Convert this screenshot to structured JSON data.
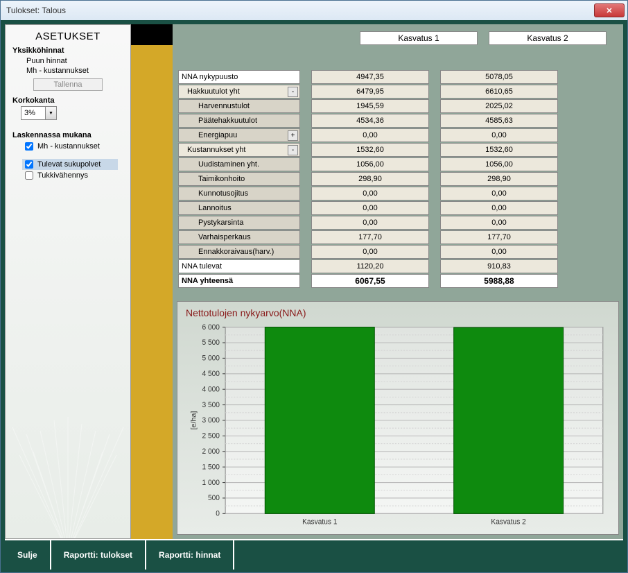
{
  "window": {
    "title": "Tulokset: Talous"
  },
  "sidebar": {
    "title": "ASETUKSET",
    "sec1": "Yksikköhinnat",
    "sec1_items": [
      "Puun hinnat",
      "Mh - kustannukset"
    ],
    "save_btn": "Tallenna",
    "sec2": "Korkokanta",
    "korko_value": "3%",
    "sec3": "Laskennassa mukana",
    "check1": "Mh - kustannukset",
    "check2": "Tulevat sukupolvet",
    "check3": "Tukkivähennys",
    "check1_on": true,
    "check2_on": true,
    "check3_on": false
  },
  "columns": {
    "c1": "Kasvatus 1",
    "c2": "Kasvatus 2"
  },
  "rows": [
    {
      "label": "NNA nykypuusto",
      "level": 0,
      "v1": "4947,35",
      "v2": "5078,05"
    },
    {
      "label": "Hakkuutulot yht",
      "level": 1,
      "toggle": "-",
      "v1": "6479,95",
      "v2": "6610,65"
    },
    {
      "label": "Harvennustulot",
      "level": 2,
      "v1": "1945,59",
      "v2": "2025,02"
    },
    {
      "label": "Päätehakkuutulot",
      "level": 2,
      "v1": "4534,36",
      "v2": "4585,63"
    },
    {
      "label": "Energiapuu",
      "level": 2,
      "toggle": "+",
      "v1": "0,00",
      "v2": "0,00"
    },
    {
      "label": "Kustannukset yht",
      "level": 1,
      "toggle": "-",
      "v1": "1532,60",
      "v2": "1532,60"
    },
    {
      "label": "Uudistaminen yht.",
      "level": 2,
      "v1": "1056,00",
      "v2": "1056,00"
    },
    {
      "label": "Taimikonhoito",
      "level": 2,
      "v1": "298,90",
      "v2": "298,90"
    },
    {
      "label": "Kunnotusojitus",
      "level": 2,
      "v1": "0,00",
      "v2": "0,00"
    },
    {
      "label": "Lannoitus",
      "level": 2,
      "v1": "0,00",
      "v2": "0,00"
    },
    {
      "label": "Pystykarsinta",
      "level": 2,
      "v1": "0,00",
      "v2": "0,00"
    },
    {
      "label": "Varhaisperkaus",
      "level": 2,
      "v1": "177,70",
      "v2": "177,70"
    },
    {
      "label": "Ennakkoraivaus(harv.)",
      "level": 2,
      "v1": "0,00",
      "v2": "0,00"
    },
    {
      "label": "NNA tulevat",
      "level": 0,
      "v1": "1120,20",
      "v2": "910,83"
    },
    {
      "label": "NNA yhteensä",
      "level": 0,
      "bold": true,
      "v1": "6067,55",
      "v2": "5988,88",
      "total": true
    }
  ],
  "chart": {
    "title": "Nettotulojen nykyarvo(NNA)",
    "ylabel": "[e/ha]",
    "categories": [
      "Kasvatus 1",
      "Kasvatus 2"
    ],
    "values": [
      6068,
      5989
    ],
    "ylim": [
      0,
      6000
    ],
    "yticks": [
      "0",
      "500",
      "1 000",
      "1 500",
      "2 000",
      "2 500",
      "3 000",
      "3 500",
      "4 000",
      "4 500",
      "5 000",
      "5 500",
      "6 000"
    ],
    "bar_color": "#0e8a0e",
    "bar_stroke": "#005500",
    "grid_color": "#bababa",
    "minor_grid_color": "#d4d4d4",
    "bg_from": "#e0e4e0",
    "bg_to": "#f4f6f4",
    "font_size": 10
  },
  "footer": {
    "b1": "Sulje",
    "b2": "Raportti: tulokset",
    "b3": "Raportti: hinnat"
  }
}
